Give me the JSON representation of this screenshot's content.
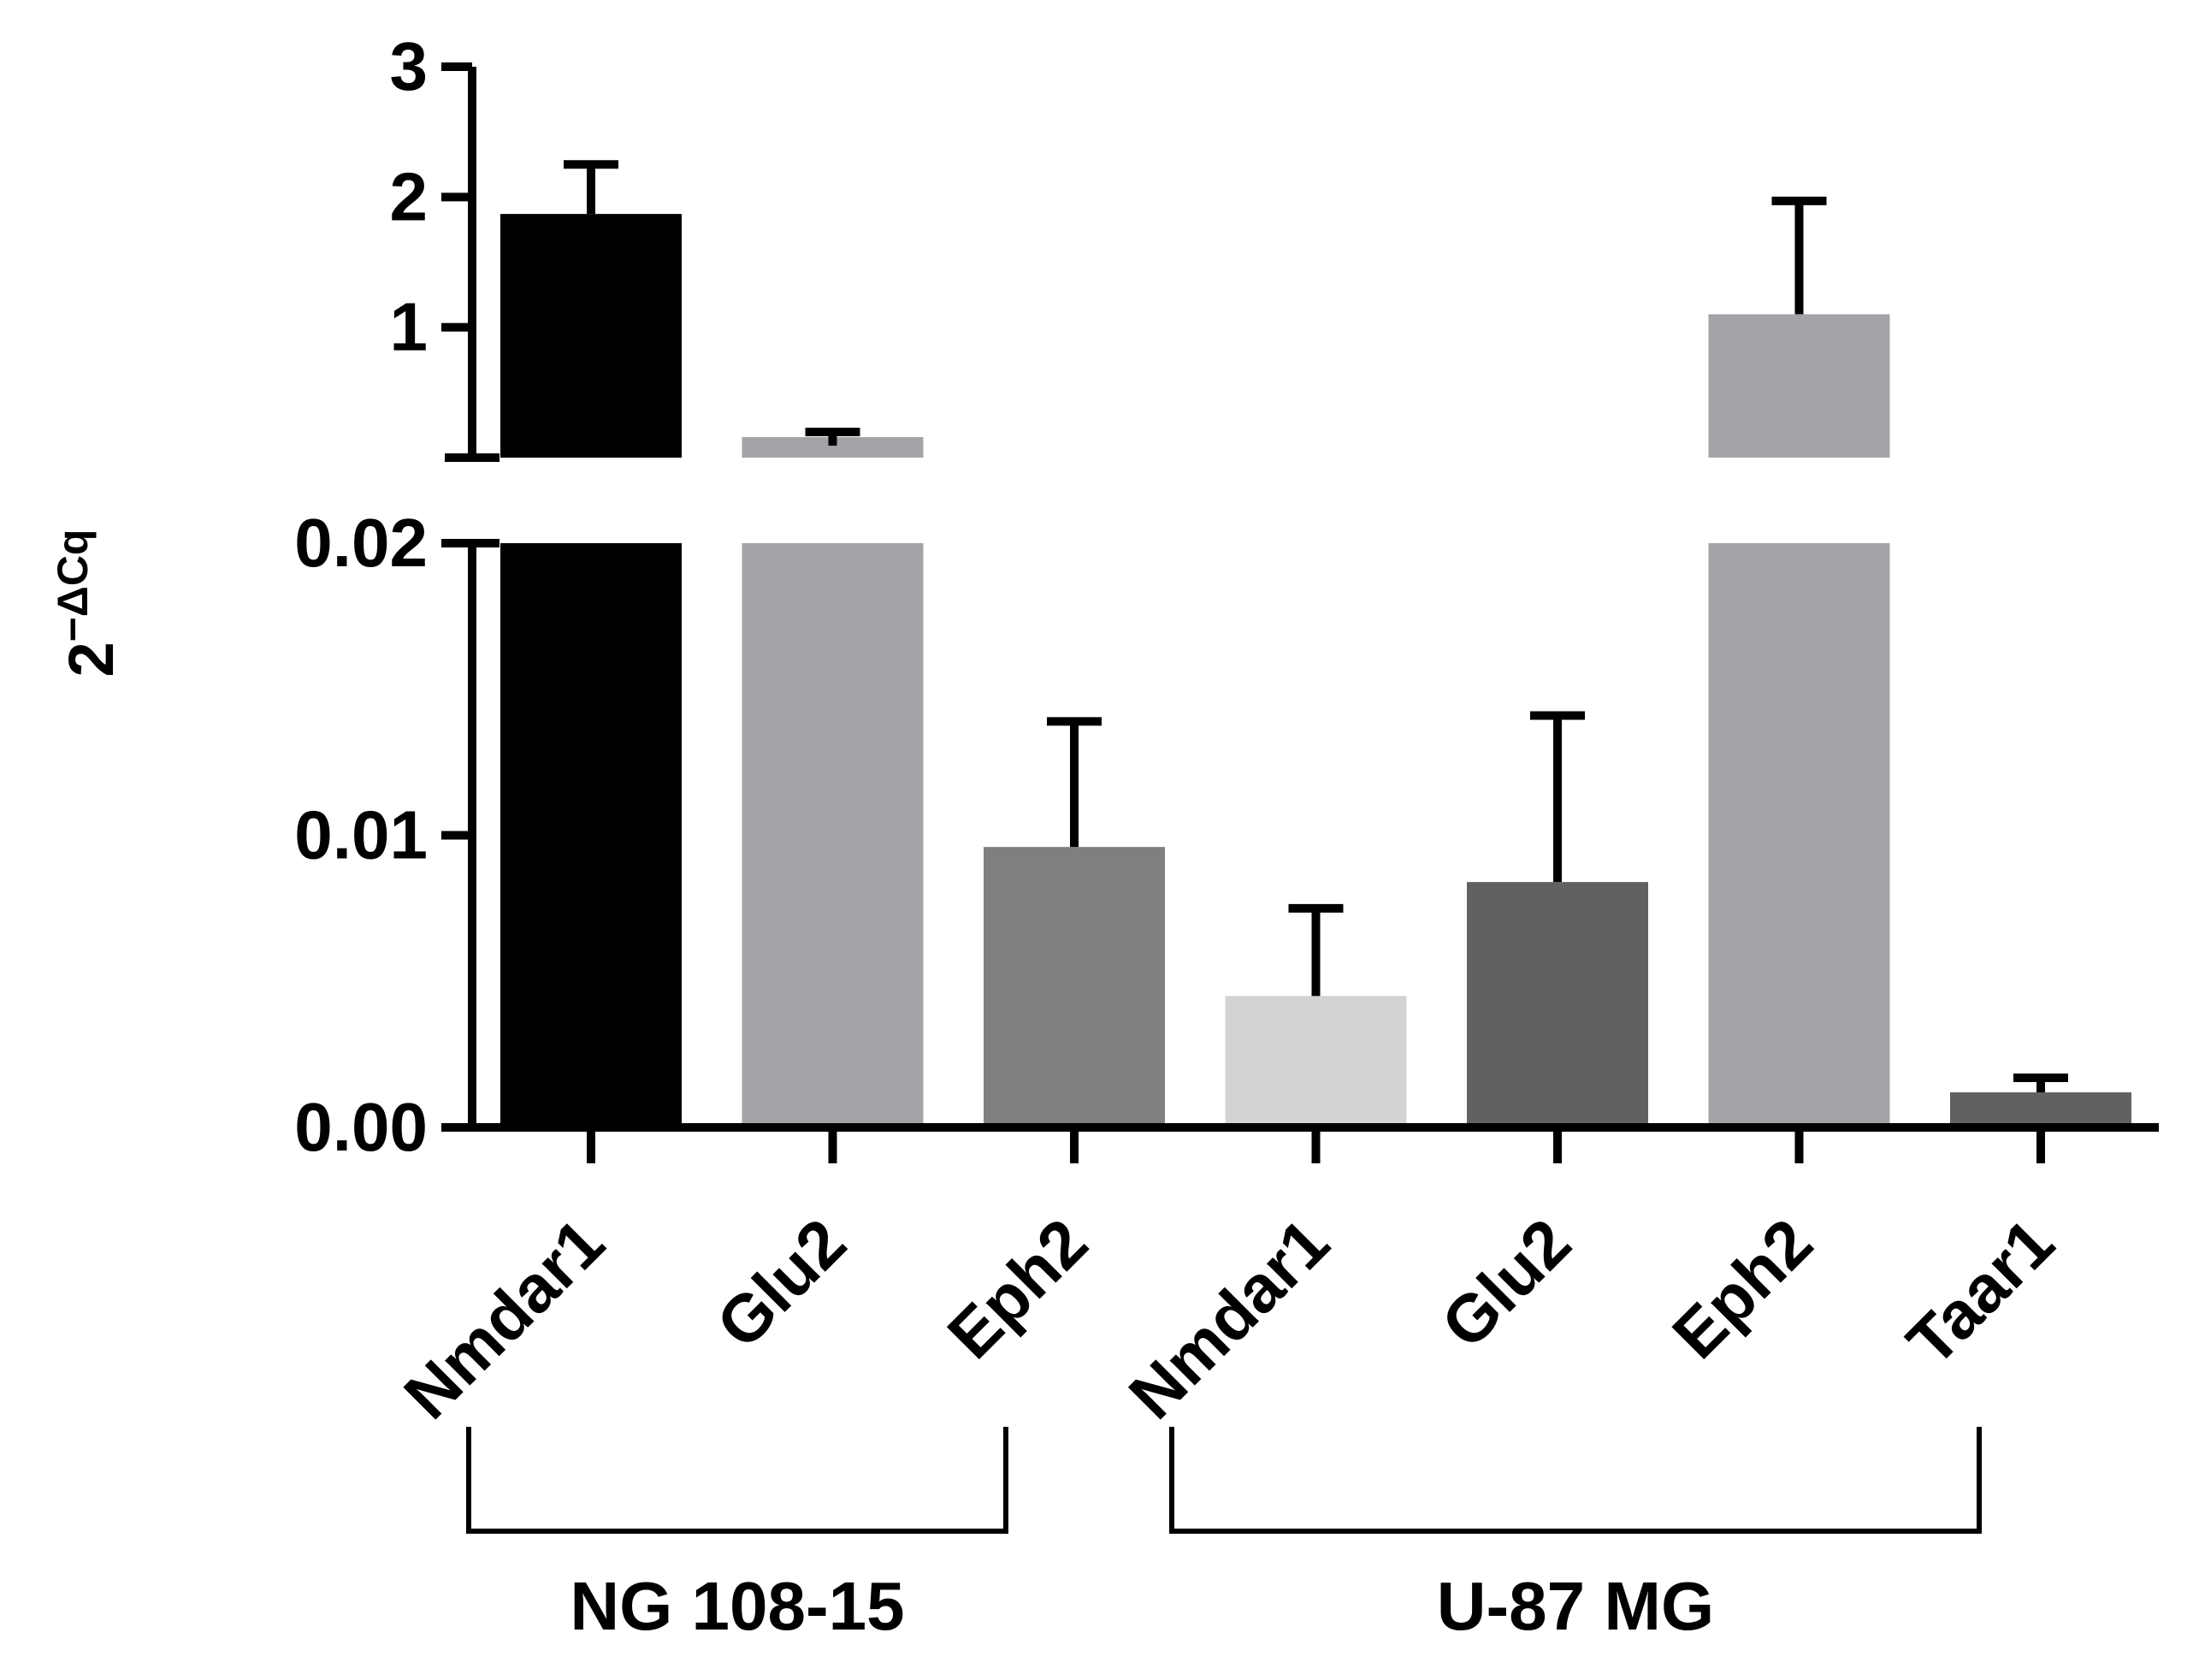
{
  "chart_data": {
    "type": "bar",
    "title": "",
    "xlabel": "",
    "ylabel": {
      "base": "2",
      "superscript": "−ΔCq"
    },
    "axis_break": {
      "upper_range": [
        0,
        3
      ],
      "lower_range": [
        0,
        0.02
      ]
    },
    "yticks_upper": [
      "1",
      "2",
      "3"
    ],
    "yticks_lower": [
      "0.00",
      "0.01",
      "0.02"
    ],
    "categories": [
      "Nmdar1",
      "Glu2",
      "Eph2",
      "Nmdar1",
      "Glu2",
      "Eph2",
      "Taar1"
    ],
    "values": [
      1.87,
      0.15,
      0.0096,
      0.0045,
      0.0084,
      1.1,
      0.0012
    ],
    "errors": [
      0.38,
      0.03,
      0.0043,
      0.003,
      0.0057,
      0.87,
      0.0005
    ],
    "colors": [
      "#000000",
      "#a3a3a8",
      "#7f7f7f",
      "#d3d3d3",
      "#616161",
      "#a3a3a8",
      "#616161"
    ],
    "groups": [
      {
        "name": "NG 108-15",
        "from": 0,
        "to": 2
      },
      {
        "name": "U-87 MG",
        "from": 3,
        "to": 6
      }
    ]
  }
}
